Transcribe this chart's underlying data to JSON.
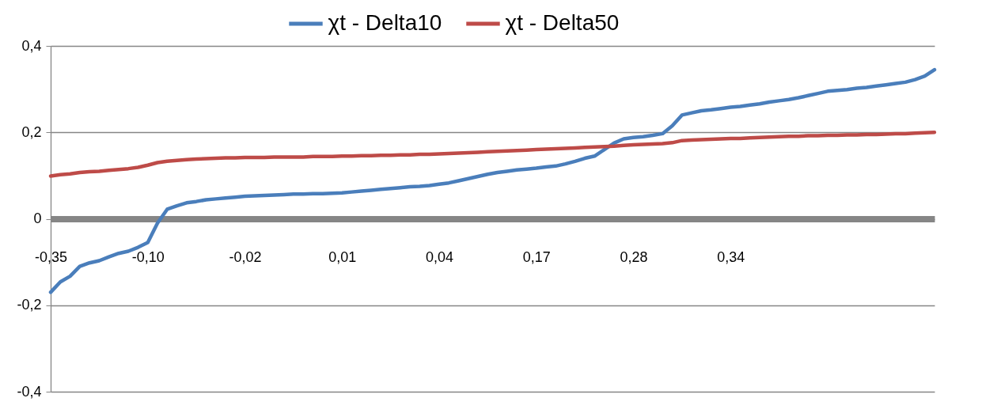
{
  "chart_data": {
    "type": "line",
    "categories": [
      "-0,35",
      null,
      null,
      null,
      null,
      null,
      null,
      null,
      null,
      null,
      "-0,10",
      null,
      null,
      null,
      null,
      null,
      null,
      null,
      null,
      null,
      "-0,02",
      null,
      null,
      null,
      null,
      null,
      null,
      null,
      null,
      null,
      "0,01",
      null,
      null,
      null,
      null,
      null,
      null,
      null,
      null,
      null,
      "0,04",
      null,
      null,
      null,
      null,
      null,
      null,
      null,
      null,
      null,
      "0,17",
      null,
      null,
      null,
      null,
      null,
      null,
      null,
      null,
      null,
      "0,28",
      null,
      null,
      null,
      null,
      null,
      null,
      null,
      null,
      null,
      "0,34",
      null,
      null,
      null,
      null,
      null,
      null,
      null,
      null,
      null,
      null,
      null,
      null,
      null,
      null,
      null,
      null,
      null,
      null,
      null,
      null,
      null
    ],
    "series": [
      {
        "name": "χt - Delta10",
        "color": "#4a7ebb",
        "values": [
          -0.17,
          -0.146,
          -0.133,
          -0.11,
          -0.102,
          -0.097,
          -0.088,
          -0.08,
          -0.075,
          -0.066,
          -0.055,
          -0.01,
          0.022,
          0.03,
          0.037,
          0.04,
          0.044,
          0.046,
          0.048,
          0.05,
          0.052,
          0.053,
          0.054,
          0.055,
          0.056,
          0.057,
          0.057,
          0.058,
          0.058,
          0.059,
          0.06,
          0.062,
          0.064,
          0.066,
          0.068,
          0.07,
          0.072,
          0.074,
          0.075,
          0.077,
          0.08,
          0.083,
          0.088,
          0.093,
          0.098,
          0.103,
          0.107,
          0.11,
          0.113,
          0.115,
          0.117,
          0.12,
          0.122,
          0.127,
          0.133,
          0.14,
          0.145,
          0.16,
          0.175,
          0.185,
          0.188,
          0.19,
          0.193,
          0.197,
          0.215,
          0.24,
          0.245,
          0.25,
          0.252,
          0.255,
          0.258,
          0.26,
          0.263,
          0.266,
          0.27,
          0.273,
          0.276,
          0.28,
          0.285,
          0.29,
          0.295,
          0.297,
          0.299,
          0.302,
          0.304,
          0.307,
          0.31,
          0.313,
          0.316,
          0.322,
          0.33,
          0.345
        ]
      },
      {
        "name": "χt - Delta50",
        "color": "#be4b48",
        "values": [
          0.099,
          0.102,
          0.104,
          0.107,
          0.109,
          0.11,
          0.112,
          0.114,
          0.116,
          0.119,
          0.124,
          0.13,
          0.133,
          0.135,
          0.137,
          0.138,
          0.139,
          0.14,
          0.141,
          0.141,
          0.142,
          0.142,
          0.142,
          0.143,
          0.143,
          0.143,
          0.143,
          0.144,
          0.144,
          0.144,
          0.145,
          0.145,
          0.146,
          0.146,
          0.147,
          0.147,
          0.148,
          0.148,
          0.149,
          0.149,
          0.15,
          0.151,
          0.152,
          0.153,
          0.154,
          0.155,
          0.156,
          0.157,
          0.158,
          0.159,
          0.16,
          0.161,
          0.162,
          0.163,
          0.164,
          0.165,
          0.166,
          0.167,
          0.168,
          0.17,
          0.171,
          0.172,
          0.173,
          0.174,
          0.176,
          0.181,
          0.182,
          0.183,
          0.184,
          0.185,
          0.186,
          0.186,
          0.187,
          0.188,
          0.189,
          0.19,
          0.191,
          0.191,
          0.192,
          0.192,
          0.193,
          0.193,
          0.194,
          0.194,
          0.195,
          0.195,
          0.196,
          0.197,
          0.197,
          0.198,
          0.199,
          0.2
        ]
      }
    ],
    "ylim": [
      -0.4,
      0.4
    ],
    "yticks": [
      {
        "value": -0.4,
        "label": "-0,4"
      },
      {
        "value": -0.2,
        "label": "-0,2"
      },
      0,
      {
        "value": 0.2,
        "label": "0,2"
      },
      {
        "value": 0.4,
        "label": "0,4"
      }
    ],
    "grid": "y",
    "legend": "top",
    "marker": "none",
    "line_style": "solid"
  }
}
